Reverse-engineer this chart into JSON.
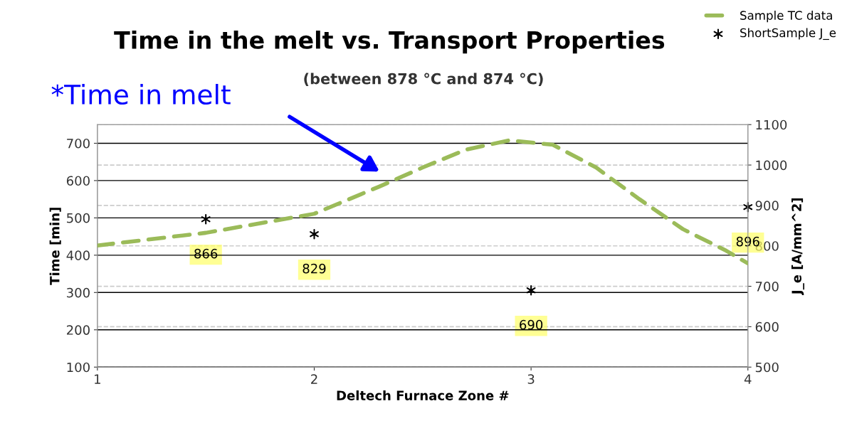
{
  "chart_data": {
    "type": "line",
    "title": "Time in the melt vs. Transport Properties",
    "subtitle": "(between 878 °C and 874 °C)",
    "xlabel": "Deltech Furnace Zone #",
    "ylabel": "Time [min]",
    "y2label": "J_e [A/mm^2]",
    "annotations": [
      "*Time in melt"
    ],
    "x": [
      1,
      1.5,
      2,
      2.3,
      2.5,
      2.7,
      2.9,
      3.1,
      3.3,
      3.5,
      3.7,
      3.9,
      4
    ],
    "series": [
      {
        "name": "Sample TC data",
        "color": "#9bbb59",
        "line_style": "dashed",
        "marker": "none",
        "values": [
          426,
          460,
          511,
          584,
          635,
          683,
          708,
          696,
          635,
          550,
          470,
          412,
          378
        ]
      },
      {
        "name": "ShortSample J_e",
        "type": "scatter",
        "axis": "y2",
        "color": "#000000",
        "marker": "cross",
        "x": [
          1.5,
          2,
          3,
          4
        ],
        "values": [
          866,
          829,
          690,
          896
        ],
        "value_labels": [
          "866",
          "829",
          "690",
          "896"
        ]
      }
    ],
    "xlim": [
      1,
      4
    ],
    "xticks": [
      1,
      2,
      3,
      4
    ],
    "ylim": [
      100,
      750
    ],
    "yticks": [
      100,
      200,
      300,
      400,
      500,
      600,
      700
    ],
    "y2lim": [
      500,
      1100
    ],
    "y2ticks": [
      500,
      600,
      700,
      800,
      900,
      1000,
      1100
    ],
    "grid": true,
    "legend": "top right"
  }
}
